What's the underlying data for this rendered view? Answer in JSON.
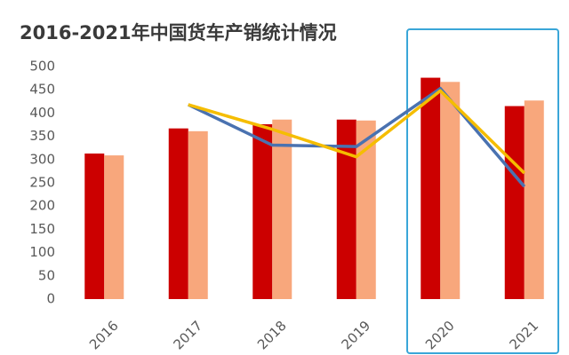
{
  "chart_data": {
    "type": "bar-line",
    "title": "2016-2021年中国货车产销统计情况",
    "categories": [
      "2016",
      "2017",
      "2018",
      "2019",
      "2020",
      "2021"
    ],
    "series": [
      {
        "type": "bar",
        "color": "#cc0000",
        "values": [
          313,
          367,
          376,
          386,
          476,
          415
        ]
      },
      {
        "type": "bar",
        "color": "#f8a77c",
        "values": [
          309,
          361,
          386,
          384,
          467,
          427
        ]
      },
      {
        "type": "line",
        "color": "#4a72b0",
        "values": [
          null,
          418,
          331,
          328,
          453,
          242
        ]
      },
      {
        "type": "line",
        "color": "#f5bd00",
        "values": [
          null,
          418,
          365,
          306,
          448,
          271
        ]
      }
    ],
    "ylim": [
      0,
      500
    ],
    "yticks": [
      0,
      50,
      100,
      150,
      200,
      250,
      300,
      350,
      400,
      450,
      500
    ],
    "grid": false
  }
}
